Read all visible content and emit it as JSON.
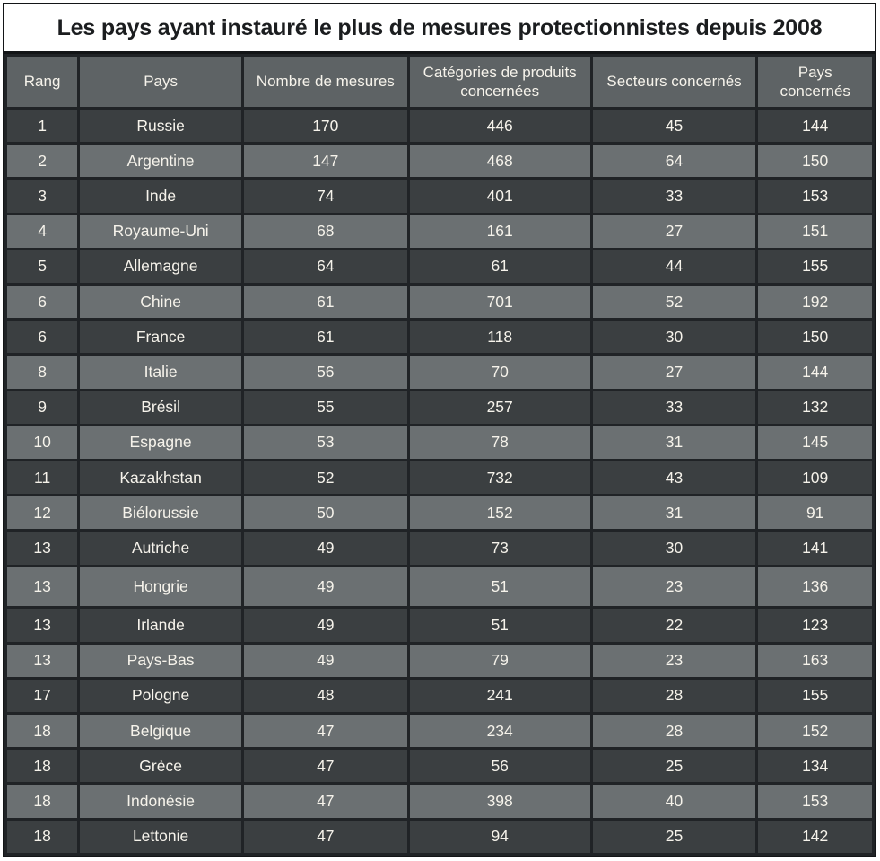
{
  "title": "Les pays ayant instauré le plus de mesures protectionnistes depuis 2008",
  "chart_data": {
    "type": "table",
    "title": "Les pays ayant instauré le plus de mesures protectionnistes depuis 2008",
    "columns": [
      "Rang",
      "Pays",
      "Nombre de mesures",
      "Catégories de produits concernées",
      "Secteurs concernés",
      "Pays concernés"
    ],
    "rows": [
      [
        "1",
        "Russie",
        "170",
        "446",
        "45",
        "144"
      ],
      [
        "2",
        "Argentine",
        "147",
        "468",
        "64",
        "150"
      ],
      [
        "3",
        "Inde",
        "74",
        "401",
        "33",
        "153"
      ],
      [
        "4",
        "Royaume-Uni",
        "68",
        "161",
        "27",
        "151"
      ],
      [
        "5",
        "Allemagne",
        "64",
        "61",
        "44",
        "155"
      ],
      [
        "6",
        "Chine",
        "61",
        "701",
        "52",
        "192"
      ],
      [
        "6",
        "France",
        "61",
        "118",
        "30",
        "150"
      ],
      [
        "8",
        "Italie",
        "56",
        "70",
        "27",
        "144"
      ],
      [
        "9",
        "Brésil",
        "55",
        "257",
        "33",
        "132"
      ],
      [
        "10",
        "Espagne",
        "53",
        "78",
        "31",
        "145"
      ],
      [
        "11",
        "Kazakhstan",
        "52",
        "732",
        "43",
        "109"
      ],
      [
        "12",
        "Biélorussie",
        "50",
        "152",
        "31",
        "91"
      ],
      [
        "13",
        "Autriche",
        "49",
        "73",
        "30",
        "141"
      ],
      [
        "13",
        "Hongrie",
        "49",
        "51",
        "23",
        "136"
      ],
      [
        "13",
        "Irlande",
        "49",
        "51",
        "22",
        "123"
      ],
      [
        "13",
        "Pays-Bas",
        "49",
        "79",
        "23",
        "163"
      ],
      [
        "17",
        "Pologne",
        "48",
        "241",
        "28",
        "155"
      ],
      [
        "18",
        "Belgique",
        "47",
        "234",
        "28",
        "152"
      ],
      [
        "18",
        "Grèce",
        "47",
        "56",
        "25",
        "134"
      ],
      [
        "18",
        "Indonésie",
        "47",
        "398",
        "40",
        "153"
      ],
      [
        "18",
        "Lettonie",
        "47",
        "94",
        "25",
        "142"
      ]
    ]
  },
  "colors": {
    "title_bg": "#ffffff",
    "title_text": "#1b1d1f",
    "header_bg": "#5e6365",
    "row_dark": "#3b3f41",
    "row_light": "#6b7072",
    "grid": "#202326",
    "cell_text": "#f6f3eb"
  }
}
